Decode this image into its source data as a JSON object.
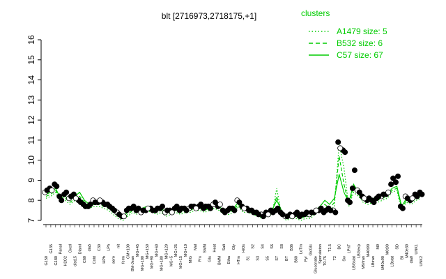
{
  "chart_data": {
    "type": "scatter",
    "title": "blt [2716973,2718175,+1]",
    "xlabel": "",
    "ylabel": "",
    "ylim": [
      7,
      16
    ],
    "yticks": [
      7,
      8,
      9,
      10,
      11,
      12,
      13,
      14,
      15,
      16
    ],
    "grid": false,
    "legend": {
      "title": "clusters",
      "placement": "top-right",
      "entries": [
        {
          "label": "A1479 size: 5",
          "style": "dotted"
        },
        {
          "label": "B532 size: 6",
          "style": "dashed"
        },
        {
          "label": "C57 size: 67",
          "style": "solid"
        }
      ]
    },
    "colors": {
      "lines": "#00cc00",
      "points_fill": "#000000",
      "points_open": "#ffffff",
      "axes": "#000000"
    },
    "categories": [
      "G150",
      "G135",
      "G180",
      "PanaI",
      "H2O2",
      "Oxctl",
      "dist15",
      "DiamI",
      "C60",
      "dia5",
      "Cold",
      "C30",
      "HPh",
      "LPh",
      "aero",
      "nit",
      "ferm",
      "CM+100",
      "BM-Jean",
      "MG+45",
      "MG+100",
      "MG+150",
      "MG+90",
      "MG+60",
      "MG+180",
      "MG+120",
      "MG+5",
      "MG+25",
      "MG+15",
      "MG+10",
      "M/G",
      "Mal",
      "Fru",
      "SMM",
      "Glu",
      "Heat",
      "BMM",
      "Salt",
      "Etha",
      "Gly",
      "HTm",
      "HiOs",
      "S1",
      "S2",
      "S3",
      "S4",
      "S5",
      "S6",
      "S7",
      "S8",
      "BT",
      "B36",
      "B60",
      "LoTm",
      "Pyr",
      "GlcGlc",
      "Gluconate",
      "Sporulation",
      "T0.75",
      "T1.5",
      "T2",
      "BC",
      "Sw",
      "LPhT",
      "LBGstat",
      "LBGexp",
      "M9/tran",
      "M40t90",
      "LBtran",
      "M9",
      "M40e90",
      "M0t90",
      "LBstat",
      "SD",
      "BI",
      "M40e30",
      "dia0",
      "UNK1",
      "UNK2"
    ],
    "series": [
      {
        "values": [
          8.4,
          8.6,
          8.8,
          8.2,
          8.3,
          8.1,
          8.3,
          8.0,
          7.8,
          7.7,
          8.0,
          7.9,
          7.9,
          7.8,
          7.6,
          7.4,
          7.2,
          7.5,
          7.6,
          7.5,
          7.4,
          7.5,
          7.6,
          7.5,
          7.6,
          7.4,
          7.5,
          7.6,
          7.5,
          7.6,
          7.6,
          7.7,
          7.7,
          7.6,
          7.7,
          7.8,
          7.7,
          7.5,
          7.5,
          7.6,
          8.0,
          7.7,
          7.6,
          7.5,
          7.4,
          7.3,
          7.4,
          7.5,
          7.5,
          7.4,
          7.2,
          7.3,
          7.3,
          7.2,
          7.3,
          7.3,
          7.4,
          7.5,
          7.4,
          7.6,
          7.5,
          10.9,
          10.5,
          8.0,
          8.6,
          8.5,
          8.2,
          8.0,
          8.0,
          8.1,
          8.2,
          8.3,
          8.8,
          8.9,
          7.7,
          8.2,
          8.0,
          8.3,
          8.4
        ]
      },
      {
        "values": [
          8.5,
          8.5,
          8.7,
          8.0,
          8.4,
          8.2,
          8.1,
          7.9,
          7.7,
          7.8,
          7.9,
          8.0,
          7.8,
          7.7,
          7.5,
          7.3,
          7.2,
          7.6,
          7.7,
          7.6,
          7.5,
          7.6,
          7.5,
          7.6,
          7.7,
          7.5,
          7.4,
          7.7,
          7.6,
          7.5,
          7.7,
          7.6,
          7.8,
          7.7,
          7.6,
          7.9,
          7.8,
          7.4,
          7.6,
          7.5,
          7.9,
          7.6,
          7.5,
          7.4,
          7.3,
          7.2,
          7.3,
          7.4,
          7.6,
          7.3,
          7.2,
          7.2,
          7.4,
          7.3,
          7.4,
          7.4,
          7.5,
          7.6,
          7.5,
          7.5,
          7.4,
          10.6,
          10.4,
          7.9,
          9.5,
          8.4,
          8.1,
          8.1,
          7.9,
          8.2,
          8.3,
          8.4,
          9.1,
          9.2,
          7.6,
          8.1,
          8.1,
          8.2,
          8.3
        ]
      }
    ],
    "cluster_lines": [
      {
        "name": "C57",
        "values": [
          8.3,
          8.4,
          8.6,
          8.1,
          8.2,
          8.0,
          8.2,
          8.4,
          8.0,
          7.8,
          7.9,
          7.9,
          7.8,
          7.7,
          7.5,
          7.3,
          7.2,
          7.4,
          7.6,
          7.5,
          7.6,
          7.7,
          7.6,
          7.5,
          7.6,
          7.4,
          7.5,
          7.6,
          7.5,
          7.6,
          7.6,
          7.7,
          7.7,
          7.6,
          7.7,
          7.8,
          7.7,
          7.5,
          7.5,
          7.6,
          7.9,
          7.6,
          7.6,
          7.5,
          7.4,
          7.3,
          7.4,
          7.5,
          8.0,
          7.5,
          7.2,
          7.3,
          7.3,
          7.2,
          7.3,
          7.3,
          7.5,
          7.7,
          8.0,
          7.8,
          8.1,
          9.3,
          8.4,
          7.9,
          8.8,
          8.4,
          8.1,
          8.0,
          8.1,
          8.1,
          8.2,
          8.3,
          8.6,
          8.7,
          7.7,
          8.1,
          8.0,
          8.2,
          8.3
        ]
      },
      {
        "name": "B532",
        "values": [
          8.2,
          8.3,
          8.5,
          8.0,
          8.1,
          7.9,
          8.1,
          8.2,
          7.9,
          7.7,
          7.8,
          7.8,
          7.7,
          7.6,
          7.4,
          7.2,
          7.1,
          7.3,
          7.5,
          7.4,
          7.5,
          7.6,
          7.5,
          7.4,
          7.5,
          7.3,
          7.4,
          7.5,
          7.4,
          7.5,
          7.5,
          7.6,
          7.6,
          7.5,
          7.6,
          7.7,
          7.6,
          7.4,
          7.4,
          7.5,
          7.8,
          7.5,
          7.5,
          7.4,
          7.3,
          7.2,
          7.3,
          7.4,
          8.2,
          7.4,
          7.1,
          7.2,
          7.2,
          7.1,
          7.2,
          7.2,
          7.4,
          7.6,
          7.8,
          7.6,
          7.9,
          10.2,
          8.8,
          7.8,
          8.6,
          8.3,
          8.0,
          7.9,
          8.0,
          8.0,
          8.1,
          8.2,
          8.5,
          8.6,
          7.6,
          8.0,
          7.9,
          8.1,
          8.2
        ]
      },
      {
        "name": "A1479",
        "values": [
          8.1,
          8.2,
          8.4,
          7.9,
          8.0,
          7.8,
          8.0,
          8.1,
          7.8,
          7.6,
          7.7,
          7.7,
          7.6,
          7.5,
          7.3,
          7.1,
          7.0,
          7.2,
          7.4,
          7.3,
          7.4,
          7.5,
          7.4,
          7.3,
          7.4,
          7.2,
          7.3,
          7.4,
          7.3,
          7.4,
          7.4,
          7.5,
          7.5,
          7.4,
          7.5,
          7.6,
          7.5,
          7.3,
          7.3,
          7.4,
          7.7,
          7.4,
          7.4,
          7.3,
          7.2,
          7.1,
          7.2,
          7.3,
          8.6,
          7.3,
          7.0,
          7.1,
          7.1,
          7.0,
          7.1,
          7.1,
          7.3,
          7.5,
          7.6,
          7.5,
          7.7,
          10.8,
          9.6,
          7.7,
          8.4,
          8.2,
          7.9,
          7.8,
          7.9,
          7.9,
          8.0,
          8.1,
          8.4,
          8.5,
          7.5,
          7.9,
          7.8,
          8.0,
          8.1
        ]
      }
    ]
  }
}
